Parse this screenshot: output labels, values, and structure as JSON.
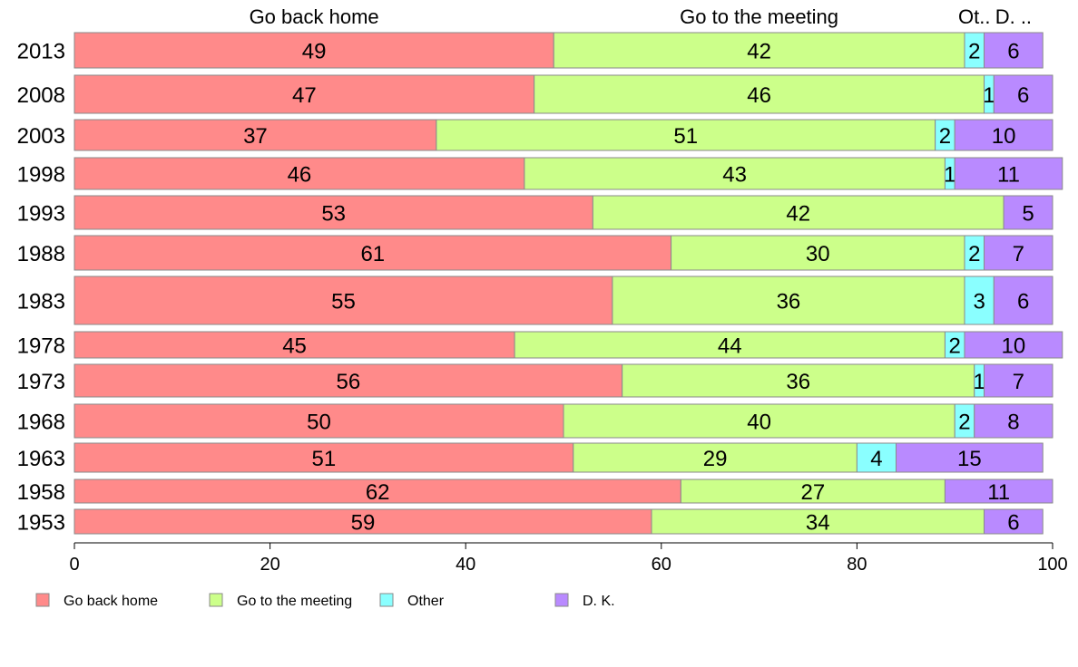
{
  "chart_data": {
    "type": "bar",
    "orientation": "horizontal",
    "stacked": true,
    "categories": [
      "2013",
      "2008",
      "2003",
      "1998",
      "1993",
      "1988",
      "1983",
      "1978",
      "1973",
      "1968",
      "1963",
      "1958",
      "1953"
    ],
    "series": [
      {
        "name": "Go back home",
        "color": "#ff8a8a",
        "values": [
          49,
          47,
          37,
          46,
          53,
          61,
          55,
          45,
          56,
          50,
          51,
          62,
          59
        ]
      },
      {
        "name": "Go to the meeting",
        "color": "#ccff8a",
        "values": [
          42,
          46,
          51,
          43,
          42,
          30,
          36,
          44,
          36,
          40,
          29,
          27,
          34
        ]
      },
      {
        "name": "Other",
        "color": "#8affff",
        "values": [
          2,
          1,
          2,
          1,
          0,
          2,
          3,
          2,
          1,
          2,
          4,
          0,
          0
        ]
      },
      {
        "name": "D. K.",
        "color": "#b98aff",
        "values": [
          6,
          6,
          10,
          11,
          5,
          7,
          6,
          10,
          7,
          8,
          15,
          11,
          6
        ]
      }
    ],
    "top_labels": [
      "Go back home",
      "Go to the meeting",
      "Ot..",
      "D. .."
    ],
    "xlim": [
      0,
      100
    ],
    "xticks": [
      "0",
      "20",
      "40",
      "60",
      "80",
      "100"
    ],
    "legend_position": "bottom-left",
    "grid": false
  }
}
